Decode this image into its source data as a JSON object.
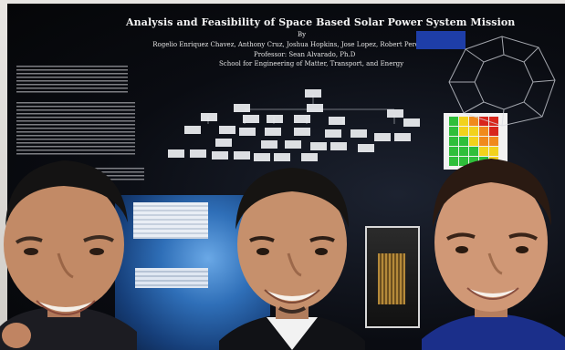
{
  "poster": {
    "title": "Analysis and Feasibility of Space Based Solar Power System Mission",
    "by": "By",
    "authors": "Rogelio Enriquez Chavez, Anthony Cruz, Joshua Hopkins, Jose Lopez, Robert Pereira",
    "advisor": "Professor: Sean Alvarado, Ph.D",
    "school": "School for Engineering of Matter, Transport, and Energy"
  },
  "colors": {
    "poster_background": "#07090e",
    "grid_green": "#2fbf3a",
    "grid_yellow": "#f2d21c",
    "grid_orange": "#f08a1c",
    "grid_red": "#d8261c",
    "earth_blue": "#2f6fb8"
  }
}
